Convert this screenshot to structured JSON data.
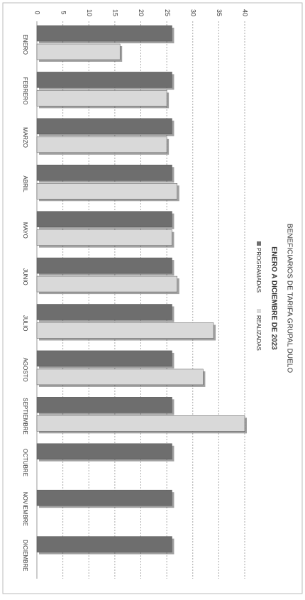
{
  "chart_data": {
    "type": "bar",
    "title": "BENEFICIARIOS DE TARIFA GRUPAL DUELO",
    "subtitle": "ENERO A DICIEMBRE DE 2023",
    "categories": [
      "ENERO",
      "FEBRERO",
      "MARZO",
      "ABRIL",
      "MAYO",
      "JUNIO",
      "JULIO",
      "AGOSTO",
      "SEPTIEMBRE",
      "OCTUBRE",
      "NOVIEMBRE",
      "DICIEMBRE"
    ],
    "series": [
      {
        "name": "PROGRAMADAS",
        "color": "#6e6e6e",
        "values": [
          26,
          26,
          26,
          26,
          26,
          26,
          26,
          26,
          26,
          26,
          26,
          26
        ]
      },
      {
        "name": "REALIZADAS",
        "color": "#d9d9d9",
        "values": [
          16,
          25,
          25,
          27,
          26,
          27,
          34,
          32,
          40,
          null,
          null,
          null
        ]
      }
    ],
    "ylim": [
      0,
      40
    ],
    "yticks": [
      0,
      5,
      10,
      15,
      20,
      25,
      30,
      35,
      40
    ],
    "grid": true
  }
}
